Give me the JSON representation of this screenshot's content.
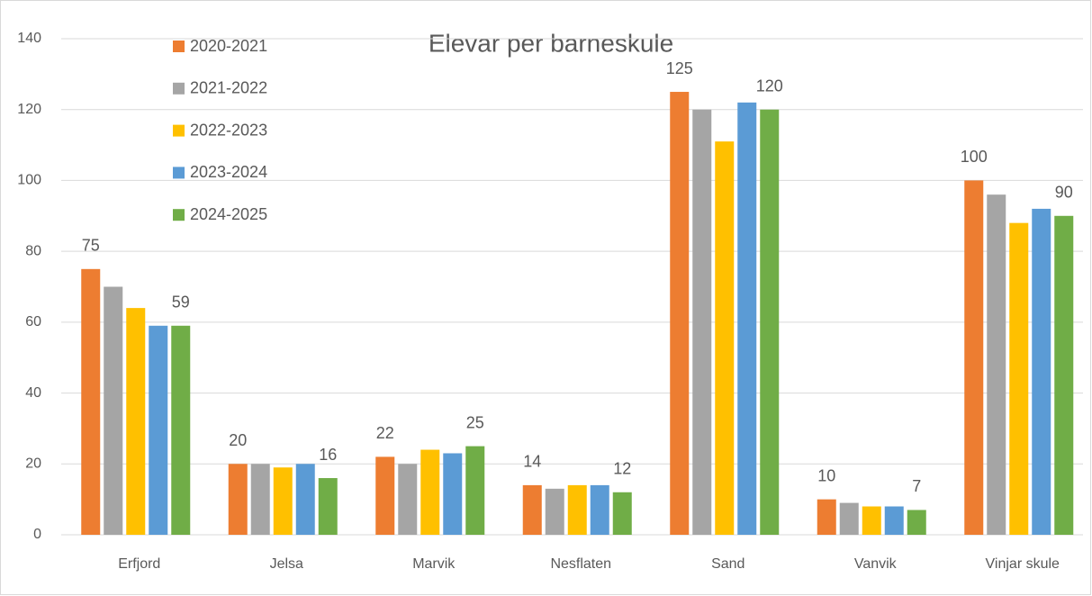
{
  "chart_data": {
    "type": "bar",
    "title": "Elevar per barneskule",
    "categories": [
      "Erfjord",
      "Jelsa",
      "Marvik",
      "Nesflaten",
      "Sand",
      "Vanvik",
      "Vinjar skule"
    ],
    "series": [
      {
        "name": "2020-2021",
        "color": "#ed7d31",
        "values": [
          75,
          20,
          22,
          14,
          125,
          10,
          100
        ],
        "data_labels": true
      },
      {
        "name": "2021-2022",
        "color": "#a5a5a5",
        "values": [
          70,
          20,
          20,
          13,
          120,
          9,
          96
        ],
        "data_labels": false
      },
      {
        "name": "2022-2023",
        "color": "#ffc000",
        "values": [
          64,
          19,
          24,
          14,
          111,
          8,
          88
        ],
        "data_labels": false
      },
      {
        "name": "2023-2024",
        "color": "#5b9bd5",
        "values": [
          59,
          20,
          23,
          14,
          122,
          8,
          92
        ],
        "data_labels": false
      },
      {
        "name": "2024-2025",
        "color": "#70ad47",
        "values": [
          59,
          16,
          25,
          12,
          120,
          7,
          90
        ],
        "data_labels": true
      }
    ],
    "ylim": [
      0,
      140
    ],
    "yticks": [
      0,
      20,
      40,
      60,
      80,
      100,
      120,
      140
    ],
    "grid": true,
    "legend": "top-left"
  }
}
